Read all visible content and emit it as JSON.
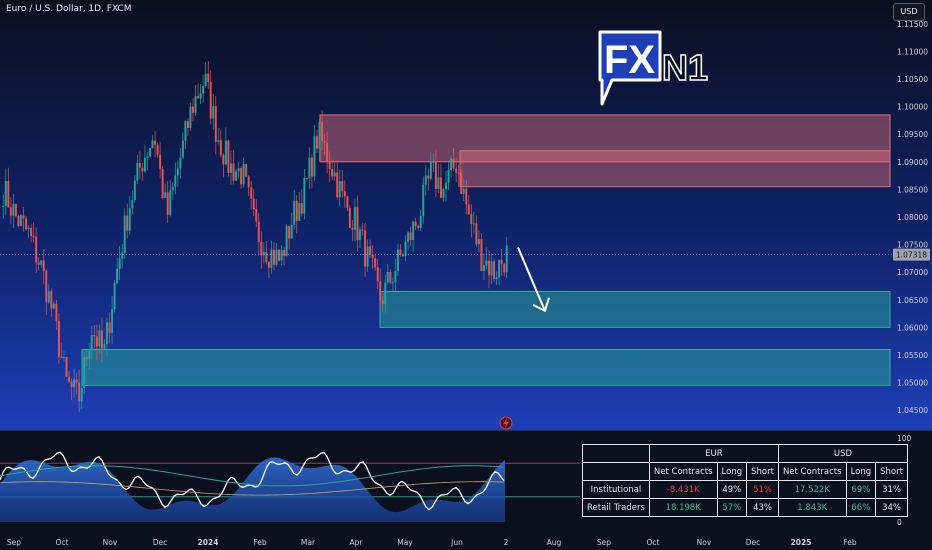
{
  "header": {
    "title": "Euro / U.S. Dollar, 1D, FXCM",
    "currency_button": "USD"
  },
  "logo": {
    "text_a": "FX",
    "text_b": "N1"
  },
  "colors": {
    "bull": "#26a69a",
    "bear": "#ef5350",
    "resistance": "#e0707a",
    "support": "#2ab595",
    "background_top": "#0b0f1e",
    "background_bottom": "#1e3fb8",
    "price_tag": "#9ea3b0"
  },
  "chart_data": {
    "type": "candlestick",
    "title": "Euro / U.S. Dollar, 1D, FXCM",
    "price_axis": {
      "ticks": [
        "1.11500",
        "1.11000",
        "1.10500",
        "1.10000",
        "1.09500",
        "1.09000",
        "1.08500",
        "1.08000",
        "1.07500",
        "1.07000",
        "1.06500",
        "1.06000",
        "1.05500",
        "1.05000",
        "1.04500"
      ],
      "ylim": [
        1.0425,
        1.1175
      ],
      "last_price": "1.07318"
    },
    "time_axis": {
      "labels": [
        "Sep",
        "Oct",
        "Nov",
        "Dec",
        "2024",
        "Feb",
        "Mar",
        "Apr",
        "May",
        "Jun",
        "2",
        "Aug",
        "Sep",
        "Oct",
        "Nov",
        "Dec",
        "2025",
        "Feb"
      ]
    },
    "price_path": [
      {
        "t": "Sep",
        "p": 1.085
      },
      {
        "t": "Sep",
        "p": 1.08
      },
      {
        "t": "Sep",
        "p": 1.077
      },
      {
        "t": "Sep",
        "p": 1.071
      },
      {
        "t": "Oct",
        "p": 1.062
      },
      {
        "t": "Oct",
        "p": 1.05
      },
      {
        "t": "Oct",
        "p": 1.047
      },
      {
        "t": "Oct",
        "p": 1.06
      },
      {
        "t": "Nov",
        "p": 1.055
      },
      {
        "t": "Nov",
        "p": 1.07
      },
      {
        "t": "Nov",
        "p": 1.082
      },
      {
        "t": "Nov",
        "p": 1.09
      },
      {
        "t": "Dec",
        "p": 1.095
      },
      {
        "t": "Dec",
        "p": 1.08
      },
      {
        "t": "Dec",
        "p": 1.09
      },
      {
        "t": "Dec",
        "p": 1.1
      },
      {
        "t": "2024",
        "p": 1.105
      },
      {
        "t": "2024",
        "p": 1.095
      },
      {
        "t": "2024",
        "p": 1.089
      },
      {
        "t": "2024",
        "p": 1.088
      },
      {
        "t": "Feb",
        "p": 1.078
      },
      {
        "t": "Feb",
        "p": 1.074
      },
      {
        "t": "Feb",
        "p": 1.072
      },
      {
        "t": "Feb",
        "p": 1.08
      },
      {
        "t": "Mar",
        "p": 1.085
      },
      {
        "t": "Mar",
        "p": 1.095
      },
      {
        "t": "Mar",
        "p": 1.09
      },
      {
        "t": "Mar",
        "p": 1.083
      },
      {
        "t": "Apr",
        "p": 1.079
      },
      {
        "t": "Apr",
        "p": 1.072
      },
      {
        "t": "Apr",
        "p": 1.065
      },
      {
        "t": "Apr",
        "p": 1.07
      },
      {
        "t": "May",
        "p": 1.075
      },
      {
        "t": "May",
        "p": 1.08
      },
      {
        "t": "May",
        "p": 1.088
      },
      {
        "t": "May",
        "p": 1.085
      },
      {
        "t": "Jun",
        "p": 1.09
      },
      {
        "t": "Jun",
        "p": 1.08
      },
      {
        "t": "Jun",
        "p": 1.073
      },
      {
        "t": "Jun",
        "p": 1.07
      },
      {
        "t": "2",
        "p": 1.0732
      }
    ],
    "zones": [
      {
        "kind": "resistance",
        "low": 1.09,
        "high": 1.0985
      },
      {
        "kind": "resistance",
        "low": 1.0855,
        "high": 1.092
      },
      {
        "kind": "support",
        "low": 1.06,
        "high": 1.0665
      },
      {
        "kind": "support",
        "low": 1.0495,
        "high": 1.056
      }
    ],
    "projection": {
      "from": 1.0745,
      "to": 1.063,
      "direction": "down"
    },
    "indicator": {
      "ticks": [
        "100",
        "75",
        "50",
        "25",
        "0"
      ],
      "ylim": [
        0,
        100
      ],
      "levels": [
        70,
        30
      ]
    }
  },
  "cot_table": {
    "groups": [
      "EUR",
      "USD"
    ],
    "columns": [
      "Net Contracts",
      "Long",
      "Short",
      "Net Contracts",
      "Long",
      "Short"
    ],
    "rows": [
      {
        "label": "Institutional",
        "eur_net": "-8.431K",
        "eur_long": "49%",
        "eur_short": "51%",
        "usd_net": "17.522K",
        "usd_long": "69%",
        "usd_short": "31%"
      },
      {
        "label": "Retail Traders",
        "eur_net": "18.198K",
        "eur_long": "57%",
        "eur_short": "43%",
        "usd_net": "1.843K",
        "usd_long": "66%",
        "usd_short": "34%"
      }
    ]
  }
}
